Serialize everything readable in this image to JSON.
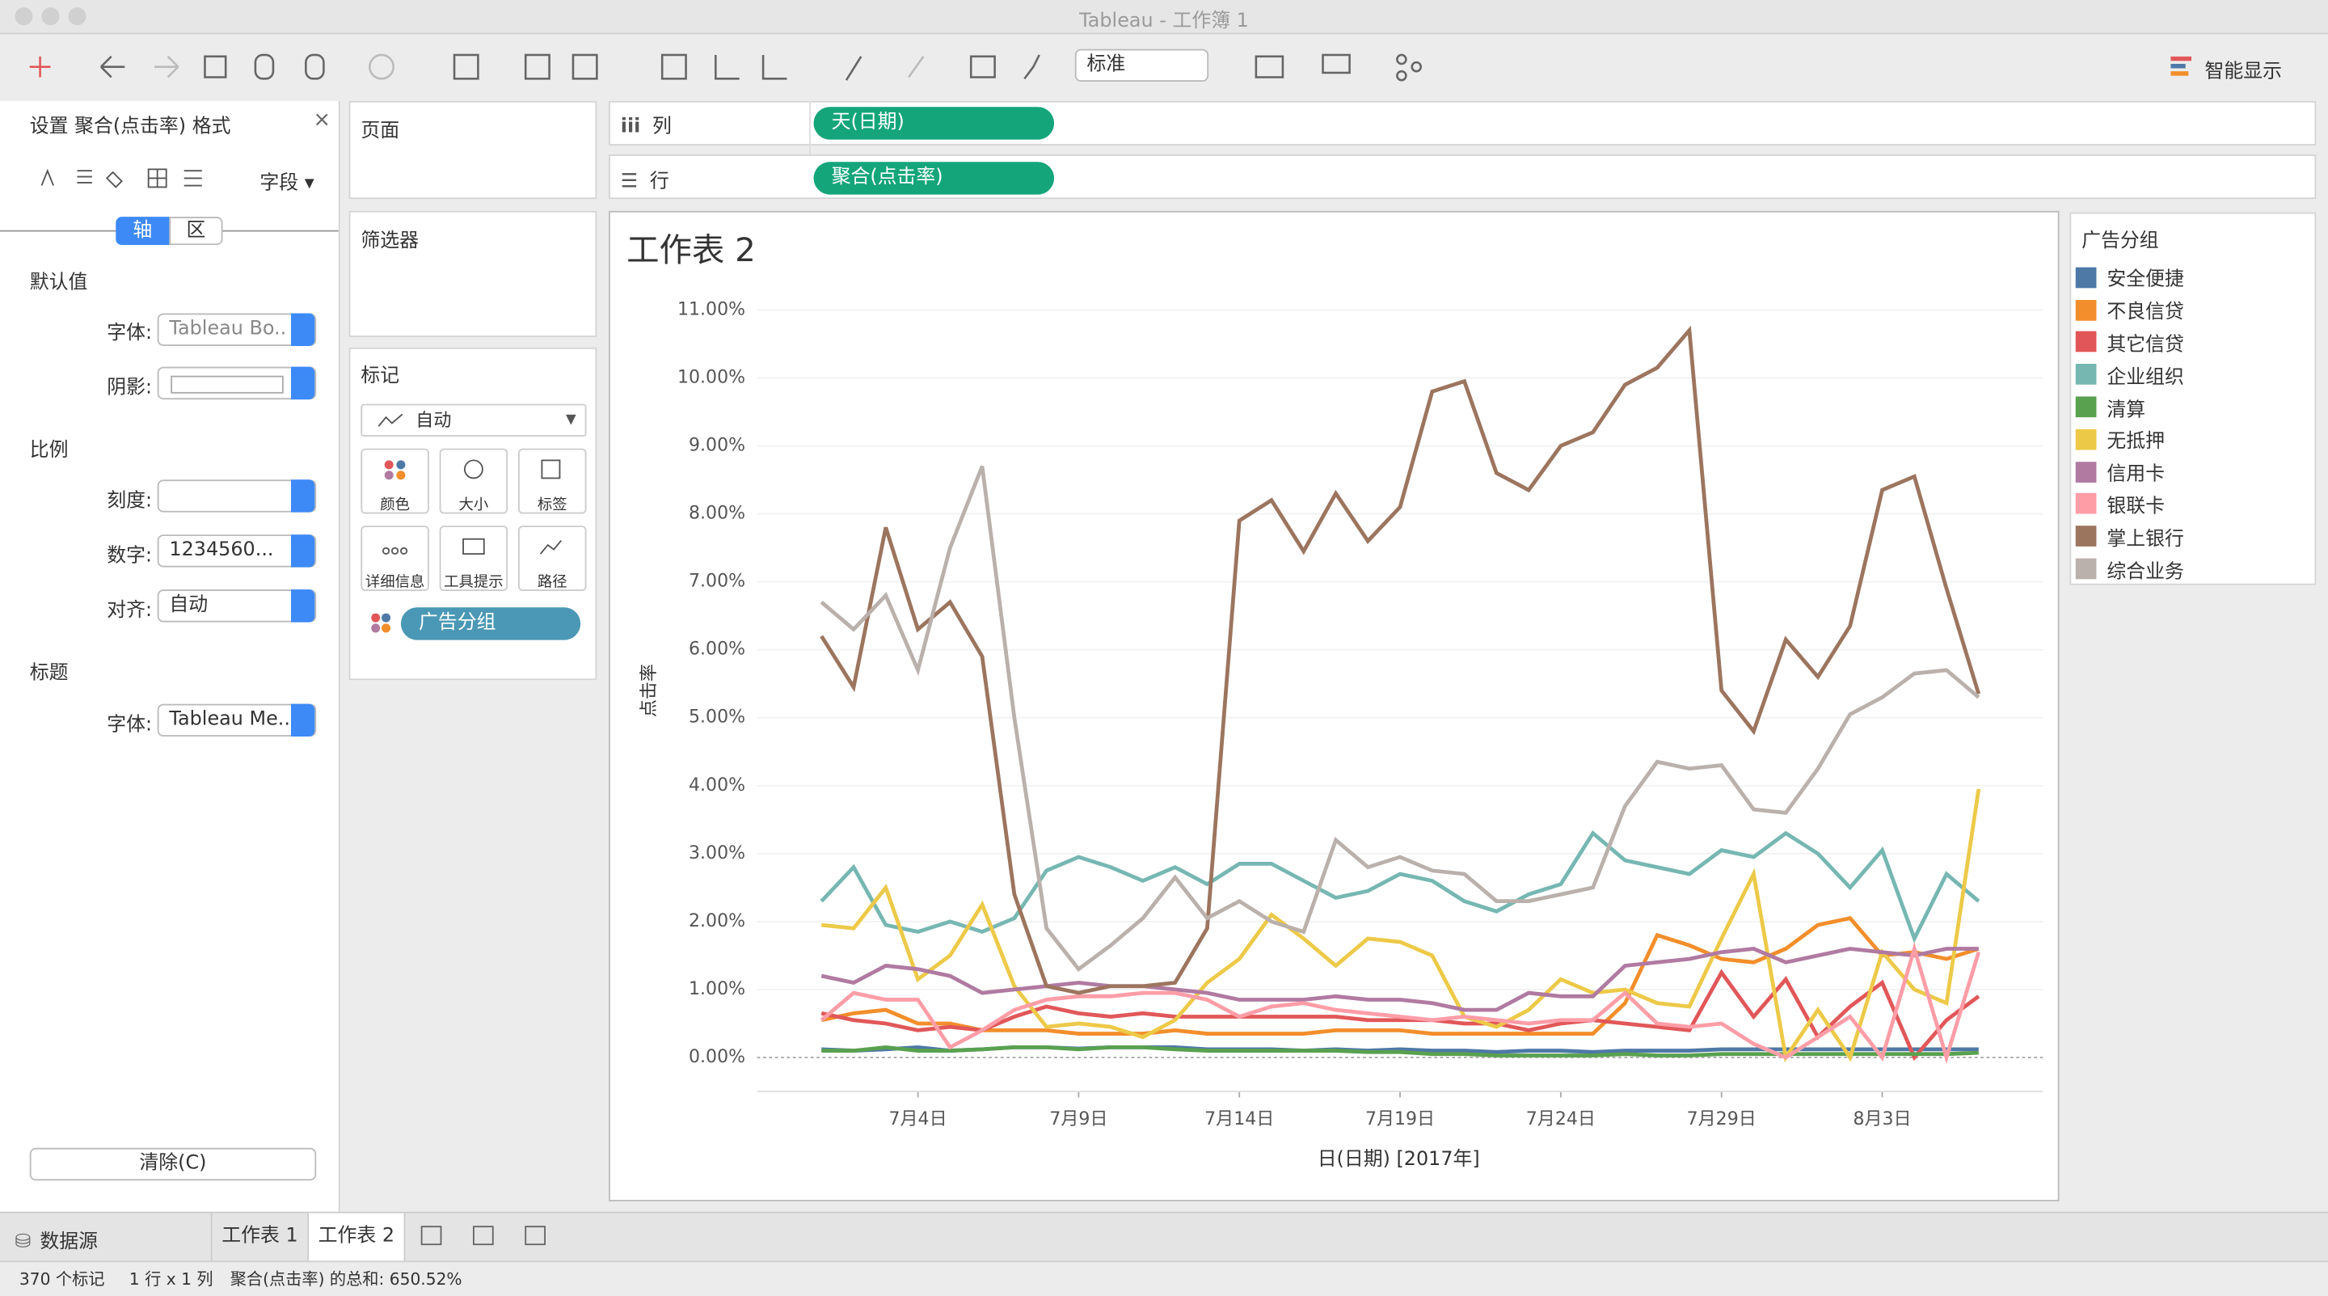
{
  "ui": {
    "window_title": "Tableau - 工作簿 1",
    "toolbar": {
      "view_size": "标准",
      "show_me": "智能显示"
    },
    "format_pane": {
      "title": "设置 聚合(点击率) 格式",
      "close": "×",
      "fields": "字段 ▾",
      "tabs": [
        "轴",
        "区"
      ],
      "default": "默认值",
      "font_label": "字体:",
      "font_value": "Tableau Bo..",
      "shade_label": "阴影:",
      "scale": "比例",
      "tick_label": "刻度:",
      "number_label": "数字:",
      "number_value": "1234560...",
      "align_label": "对齐:",
      "align_value": "自动",
      "heading": "标题",
      "title_font_label": "字体:",
      "title_font_value": "Tableau Me..",
      "clear": "清除(C)"
    },
    "cards": {
      "pages": "页面",
      "filters": "筛选器",
      "marks": "标记",
      "mark_type": "自动",
      "buttons": [
        "颜色",
        "大小",
        "标签",
        "详细信息",
        "工具提示",
        "路径"
      ],
      "color_field": "广告分组"
    },
    "shelves": {
      "columns": "列",
      "columns_pill": "天(日期)",
      "rows": "行",
      "rows_pill": "聚合(点击率)"
    },
    "tabs": [
      "数据源",
      "工作表 1",
      "工作表 2"
    ],
    "status": [
      "370 个标记",
      "1 行 x 1 列",
      "聚合(点击率) 的总和: 650.52%"
    ]
  },
  "chart_data": {
    "type": "line",
    "title": "工作表 2",
    "x_label": "日(日期) [2017年]",
    "y_label": "点击率",
    "legend_title": "广告分组",
    "legend": "right",
    "grid": true,
    "x": [
      "2017-07-01",
      "2017-07-02",
      "2017-07-03",
      "2017-07-04",
      "2017-07-05",
      "2017-07-06",
      "2017-07-07",
      "2017-07-08",
      "2017-07-09",
      "2017-07-10",
      "2017-07-11",
      "2017-07-12",
      "2017-07-13",
      "2017-07-14",
      "2017-07-15",
      "2017-07-16",
      "2017-07-17",
      "2017-07-18",
      "2017-07-19",
      "2017-07-20",
      "2017-07-21",
      "2017-07-22",
      "2017-07-23",
      "2017-07-24",
      "2017-07-25",
      "2017-07-26",
      "2017-07-27",
      "2017-07-28",
      "2017-07-29",
      "2017-07-30",
      "2017-07-31",
      "2017-08-01",
      "2017-08-02",
      "2017-08-03",
      "2017-08-04",
      "2017-08-05",
      "2017-08-06"
    ],
    "xlim": [
      "2017-06-29",
      "2017-08-08"
    ],
    "xticks": [
      {
        "value": "2017-07-04",
        "label": "7月4日"
      },
      {
        "value": "2017-07-09",
        "label": "7月9日"
      },
      {
        "value": "2017-07-14",
        "label": "7月14日"
      },
      {
        "value": "2017-07-19",
        "label": "7月19日"
      },
      {
        "value": "2017-07-24",
        "label": "7月24日"
      },
      {
        "value": "2017-07-29",
        "label": "7月29日"
      },
      {
        "value": "2017-08-03",
        "label": "8月3日"
      }
    ],
    "ylim": [
      -0.5,
      11.3
    ],
    "yticks": [
      {
        "value": 0,
        "label": "0.00%"
      },
      {
        "value": 1,
        "label": "1.00%"
      },
      {
        "value": 2,
        "label": "2.00%"
      },
      {
        "value": 3,
        "label": "3.00%"
      },
      {
        "value": 4,
        "label": "4.00%"
      },
      {
        "value": 5,
        "label": "5.00%"
      },
      {
        "value": 6,
        "label": "6.00%"
      },
      {
        "value": 7,
        "label": "7.00%"
      },
      {
        "value": 8,
        "label": "8.00%"
      },
      {
        "value": 9,
        "label": "9.00%"
      },
      {
        "value": 10,
        "label": "10.00%"
      },
      {
        "value": 11,
        "label": "11.00%"
      }
    ],
    "series": [
      {
        "name": "安全便捷",
        "color": "#4e79a7",
        "values": [
          0.12,
          0.1,
          0.12,
          0.15,
          0.1,
          0.12,
          0.15,
          0.15,
          0.13,
          0.15,
          0.15,
          0.15,
          0.12,
          0.12,
          0.12,
          0.1,
          0.12,
          0.1,
          0.12,
          0.1,
          0.1,
          0.08,
          0.1,
          0.1,
          0.08,
          0.1,
          0.1,
          0.1,
          0.12,
          0.12,
          0.12,
          0.12,
          0.12,
          0.12,
          0.12,
          0.12,
          0.12
        ]
      },
      {
        "name": "不良信贷",
        "color": "#f28e2b",
        "values": [
          0.55,
          0.65,
          0.7,
          0.5,
          0.5,
          0.4,
          0.4,
          0.4,
          0.35,
          0.35,
          0.35,
          0.4,
          0.35,
          0.35,
          0.35,
          0.35,
          0.4,
          0.4,
          0.4,
          0.35,
          0.35,
          0.35,
          0.35,
          0.35,
          0.35,
          0.8,
          1.8,
          1.65,
          1.45,
          1.4,
          1.6,
          1.95,
          2.05,
          1.5,
          1.55,
          1.45,
          1.6
        ]
      },
      {
        "name": "其它信贷",
        "color": "#e15759",
        "values": [
          0.65,
          0.55,
          0.5,
          0.4,
          0.45,
          0.4,
          0.6,
          0.75,
          0.65,
          0.6,
          0.65,
          0.6,
          0.6,
          0.6,
          0.6,
          0.6,
          0.6,
          0.55,
          0.55,
          0.55,
          0.5,
          0.5,
          0.4,
          0.5,
          0.55,
          0.5,
          0.45,
          0.4,
          1.25,
          0.6,
          1.15,
          0.3,
          0.75,
          1.1,
          0.0,
          0.55,
          0.9
        ]
      },
      {
        "name": "企业组织",
        "color": "#76b7b2",
        "values": [
          2.3,
          2.8,
          1.95,
          1.85,
          2.0,
          1.85,
          2.05,
          2.75,
          2.95,
          2.8,
          2.6,
          2.8,
          2.55,
          2.85,
          2.85,
          2.6,
          2.35,
          2.45,
          2.7,
          2.6,
          2.3,
          2.15,
          2.4,
          2.55,
          3.3,
          2.9,
          2.8,
          2.7,
          3.05,
          2.95,
          3.3,
          3.0,
          2.5,
          3.05,
          1.75,
          2.7,
          2.3
        ]
      },
      {
        "name": "清算",
        "color": "#59a14f",
        "values": [
          0.1,
          0.1,
          0.15,
          0.1,
          0.1,
          0.12,
          0.15,
          0.15,
          0.12,
          0.15,
          0.15,
          0.12,
          0.1,
          0.1,
          0.1,
          0.1,
          0.1,
          0.08,
          0.08,
          0.05,
          0.05,
          0.03,
          0.03,
          0.03,
          0.03,
          0.05,
          0.03,
          0.03,
          0.05,
          0.05,
          0.05,
          0.05,
          0.05,
          0.05,
          0.05,
          0.05,
          0.07
        ]
      },
      {
        "name": "无抵押",
        "color": "#edc948",
        "values": [
          1.95,
          1.9,
          2.5,
          1.15,
          1.5,
          2.25,
          1.05,
          0.45,
          0.5,
          0.45,
          0.3,
          0.55,
          1.1,
          1.45,
          2.1,
          1.75,
          1.35,
          1.75,
          1.7,
          1.5,
          0.6,
          0.45,
          0.7,
          1.15,
          0.95,
          1.0,
          0.8,
          0.75,
          1.75,
          2.7,
          0.0,
          0.7,
          0.0,
          1.55,
          1.0,
          0.8,
          3.95
        ]
      },
      {
        "name": "信用卡",
        "color": "#b07aa1",
        "values": [
          1.2,
          1.1,
          1.35,
          1.3,
          1.2,
          0.95,
          1.0,
          1.05,
          1.1,
          1.05,
          1.05,
          1.0,
          0.95,
          0.85,
          0.85,
          0.85,
          0.9,
          0.85,
          0.85,
          0.8,
          0.7,
          0.7,
          0.95,
          0.9,
          0.9,
          1.35,
          1.4,
          1.45,
          1.55,
          1.6,
          1.4,
          1.5,
          1.6,
          1.55,
          1.5,
          1.6,
          1.6
        ]
      },
      {
        "name": "银联卡",
        "color": "#ff9da7",
        "values": [
          0.55,
          0.95,
          0.85,
          0.85,
          0.15,
          0.4,
          0.7,
          0.85,
          0.9,
          0.9,
          0.95,
          0.95,
          0.85,
          0.6,
          0.75,
          0.8,
          0.7,
          0.65,
          0.6,
          0.55,
          0.6,
          0.55,
          0.5,
          0.55,
          0.55,
          0.95,
          0.5,
          0.45,
          0.5,
          0.2,
          0.0,
          0.3,
          0.6,
          0.0,
          1.6,
          0.0,
          1.55
        ]
      },
      {
        "name": "掌上银行",
        "color": "#9c755f",
        "values": [
          6.2,
          5.45,
          7.8,
          6.3,
          6.7,
          5.9,
          2.4,
          1.05,
          0.95,
          1.05,
          1.05,
          1.1,
          1.9,
          7.9,
          8.2,
          7.45,
          8.3,
          7.6,
          8.1,
          9.8,
          9.95,
          8.6,
          8.35,
          9.0,
          9.2,
          9.9,
          10.15,
          10.7,
          5.4,
          4.8,
          6.15,
          5.6,
          6.35,
          8.35,
          8.55,
          6.9,
          5.35
        ]
      },
      {
        "name": "综合业务",
        "color": "#bab0ac",
        "values": [
          6.7,
          6.3,
          6.8,
          5.7,
          7.5,
          8.7,
          5.0,
          1.9,
          1.3,
          1.65,
          2.05,
          2.65,
          2.05,
          2.3,
          2.0,
          1.85,
          3.2,
          2.8,
          2.95,
          2.75,
          2.7,
          2.3,
          2.3,
          2.4,
          2.5,
          3.7,
          4.35,
          4.25,
          4.3,
          3.65,
          3.6,
          4.25,
          5.05,
          5.3,
          5.65,
          5.7,
          5.3
        ]
      }
    ]
  }
}
